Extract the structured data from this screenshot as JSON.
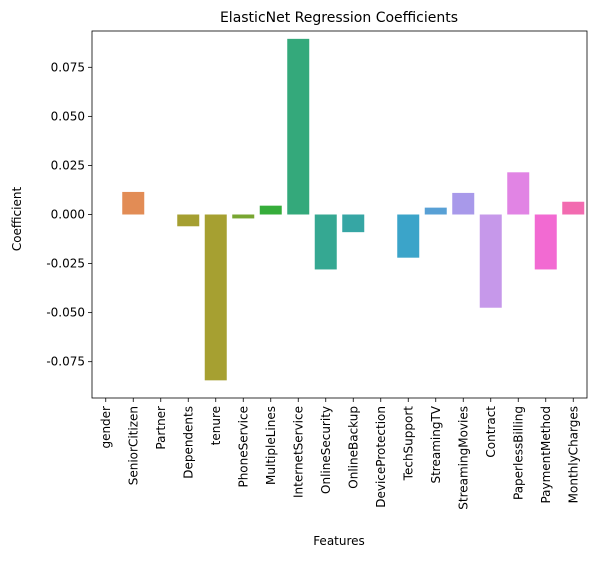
{
  "chart_data": {
    "type": "bar",
    "title": "ElasticNet Regression Coefficients",
    "xlabel": "Features",
    "ylabel": "Coefficient",
    "categories": [
      "gender",
      "SeniorCitizen",
      "Partner",
      "Dependents",
      "tenure",
      "PhoneService",
      "MultipleLines",
      "InternetService",
      "OnlineSecurity",
      "OnlineBackup",
      "DeviceProtection",
      "TechSupport",
      "StreamingTV",
      "StreamingMovies",
      "Contract",
      "PaperlessBilling",
      "PaymentMethod",
      "MonthlyCharges"
    ],
    "values": [
      0.0,
      0.0115,
      0.0,
      -0.006,
      -0.0845,
      -0.002,
      0.0045,
      0.0895,
      -0.028,
      -0.009,
      0.0,
      -0.022,
      0.0035,
      0.011,
      -0.0475,
      0.0215,
      -0.028,
      0.0065
    ],
    "colors": [
      "#f77189",
      "#e28c55",
      "#c39a32",
      "#a59f31",
      "#a6a031",
      "#78a631",
      "#36ad3b",
      "#34a97b",
      "#35a892",
      "#36a6a4",
      "#38a3b7",
      "#3ba4c9",
      "#58a0d5",
      "#a899ea",
      "#c698ea",
      "#e184e4",
      "#f26ad2",
      "#f26bb0"
    ],
    "yticks": [
      "-0.075",
      "-0.050",
      "-0.025",
      "0.000",
      "0.025",
      "0.050",
      "0.075"
    ],
    "ylim": [
      -0.0935,
      0.0935
    ],
    "grid": false,
    "legend": "none"
  }
}
